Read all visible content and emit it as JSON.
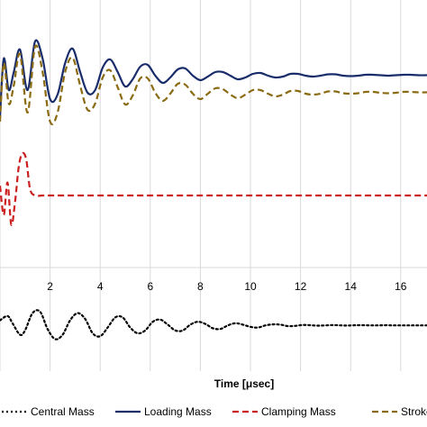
{
  "chart_data": {
    "type": "line",
    "xlabel": "Time [μsec]",
    "xlim": [
      0,
      17.6
    ],
    "x_ticks": [
      2,
      4,
      6,
      8,
      10,
      12,
      14,
      16
    ],
    "grid": "vertical",
    "legend_position": "bottom",
    "series": [
      {
        "name": "Central Mass",
        "color": "#000000",
        "dash": "dotted",
        "panel": "bottom",
        "x": [
          0,
          0.3,
          0.5,
          0.8,
          1.0,
          1.3,
          1.6,
          1.9,
          2.2,
          2.5,
          2.8,
          3.1,
          3.4,
          3.7,
          4.0,
          4.3,
          4.6,
          4.9,
          5.2,
          5.5,
          5.8,
          6.1,
          6.4,
          6.7,
          7.0,
          7.3,
          7.6,
          7.9,
          8.2,
          8.5,
          8.8,
          9.1,
          9.4,
          9.7,
          10.0,
          10.3,
          10.6,
          10.9,
          11.2,
          11.5,
          11.8,
          12.1,
          12.4,
          12.7,
          13.0,
          13.3,
          13.6,
          13.9,
          14.2,
          14.5,
          14.8,
          15.1,
          15.4,
          15.7,
          16.0,
          16.3,
          16.6,
          16.9,
          17.2,
          17.6
        ],
        "y": [
          0.4,
          0.7,
          0.2,
          -0.6,
          -0.3,
          0.9,
          1.0,
          -0.2,
          -0.9,
          -0.6,
          0.4,
          0.9,
          0.5,
          -0.5,
          -0.7,
          -0.1,
          0.6,
          0.6,
          -0.1,
          -0.5,
          -0.3,
          0.3,
          0.45,
          0.1,
          -0.3,
          -0.3,
          0.1,
          0.3,
          0.15,
          -0.15,
          -0.2,
          0.05,
          0.2,
          0.1,
          -0.05,
          -0.1,
          0.05,
          0.12,
          0.1,
          0.0,
          0.02,
          0.08,
          0.06,
          0.03,
          0.05,
          0.07,
          0.05,
          0.04,
          0.06,
          0.06,
          0.05,
          0.05,
          0.06,
          0.05,
          0.05,
          0.05,
          0.05,
          0.05,
          0.05,
          0.05
        ]
      },
      {
        "name": "Loading Mass",
        "color": "#1a2d6b",
        "dash": "solid",
        "panel": "top",
        "x": [
          0,
          0.15,
          0.35,
          0.55,
          0.8,
          1.1,
          1.4,
          1.7,
          2.0,
          2.3,
          2.6,
          2.9,
          3.2,
          3.5,
          3.8,
          4.1,
          4.4,
          4.7,
          5.0,
          5.3,
          5.6,
          5.9,
          6.2,
          6.5,
          6.8,
          7.1,
          7.4,
          7.7,
          8.0,
          8.3,
          8.6,
          8.9,
          9.2,
          9.5,
          9.8,
          10.1,
          10.4,
          10.7,
          11.0,
          11.3,
          11.6,
          11.9,
          12.2,
          12.5,
          12.8,
          13.1,
          13.4,
          13.7,
          14.0,
          14.3,
          14.6,
          14.9,
          15.2,
          15.5,
          15.8,
          16.1,
          16.4,
          16.7,
          17.0,
          17.3,
          17.6
        ],
        "y": [
          2.0,
          8.5,
          5.0,
          7.0,
          9.5,
          5.0,
          10.4,
          8.5,
          4.0,
          4.5,
          8.0,
          9.6,
          7.0,
          4.7,
          5.0,
          7.5,
          8.4,
          7.0,
          5.4,
          6.2,
          7.6,
          7.8,
          6.6,
          5.8,
          6.4,
          7.3,
          7.4,
          6.6,
          6.1,
          6.5,
          7.0,
          7.0,
          6.6,
          6.2,
          6.4,
          6.8,
          6.9,
          6.6,
          6.4,
          6.5,
          6.8,
          6.8,
          6.6,
          6.5,
          6.6,
          6.75,
          6.75,
          6.6,
          6.55,
          6.6,
          6.7,
          6.7,
          6.65,
          6.6,
          6.65,
          6.7,
          6.7,
          6.65,
          6.65,
          6.7,
          6.7
        ]
      },
      {
        "name": "Clamping Mass",
        "color": "#cc1f1f",
        "dash": "dashed",
        "panel": "middle",
        "x": [
          0,
          0.15,
          0.3,
          0.45,
          0.6,
          0.75,
          0.9,
          1.05,
          1.2,
          1.4,
          1.7,
          2.0,
          3.0,
          5.0,
          8.0,
          11.0,
          14.0,
          17.6
        ],
        "y": [
          0.3,
          -0.6,
          0.4,
          -0.9,
          -0.2,
          0.9,
          1.3,
          1.1,
          0.2,
          0.0,
          0.0,
          0.0,
          0.0,
          0.0,
          0.0,
          0.0,
          0.0,
          0.0
        ]
      },
      {
        "name": "Stroke",
        "color": "#8a6a12",
        "dash": "dashed",
        "panel": "top",
        "x": [
          0,
          0.15,
          0.35,
          0.55,
          0.8,
          1.1,
          1.4,
          1.7,
          2.0,
          2.3,
          2.6,
          2.9,
          3.2,
          3.5,
          3.8,
          4.1,
          4.4,
          4.7,
          5.0,
          5.3,
          5.6,
          5.9,
          6.2,
          6.5,
          6.8,
          7.1,
          7.4,
          7.7,
          8.0,
          8.3,
          8.6,
          8.9,
          9.2,
          9.5,
          9.8,
          10.1,
          10.4,
          10.7,
          11.0,
          11.3,
          11.6,
          11.9,
          12.2,
          12.5,
          12.8,
          13.1,
          13.4,
          13.7,
          14.0,
          14.3,
          14.6,
          14.9,
          15.2,
          15.5,
          15.8,
          16.1,
          16.4,
          16.7,
          17.0,
          17.3,
          17.6
        ],
        "y": [
          1.5,
          8.0,
          3.5,
          5.5,
          9.0,
          2.5,
          9.8,
          7.0,
          1.5,
          2.5,
          7.0,
          8.6,
          5.5,
          2.8,
          3.5,
          6.4,
          7.2,
          5.3,
          3.4,
          4.4,
          6.3,
          6.3,
          4.7,
          3.8,
          4.6,
          5.7,
          5.6,
          4.6,
          4.0,
          4.6,
          5.2,
          5.1,
          4.5,
          4.1,
          4.5,
          5.0,
          5.0,
          4.6,
          4.3,
          4.5,
          4.9,
          4.9,
          4.6,
          4.5,
          4.6,
          4.85,
          4.85,
          4.65,
          4.6,
          4.65,
          4.8,
          4.8,
          4.7,
          4.65,
          4.7,
          4.8,
          4.8,
          4.75,
          4.75,
          4.8,
          4.8
        ]
      }
    ]
  }
}
